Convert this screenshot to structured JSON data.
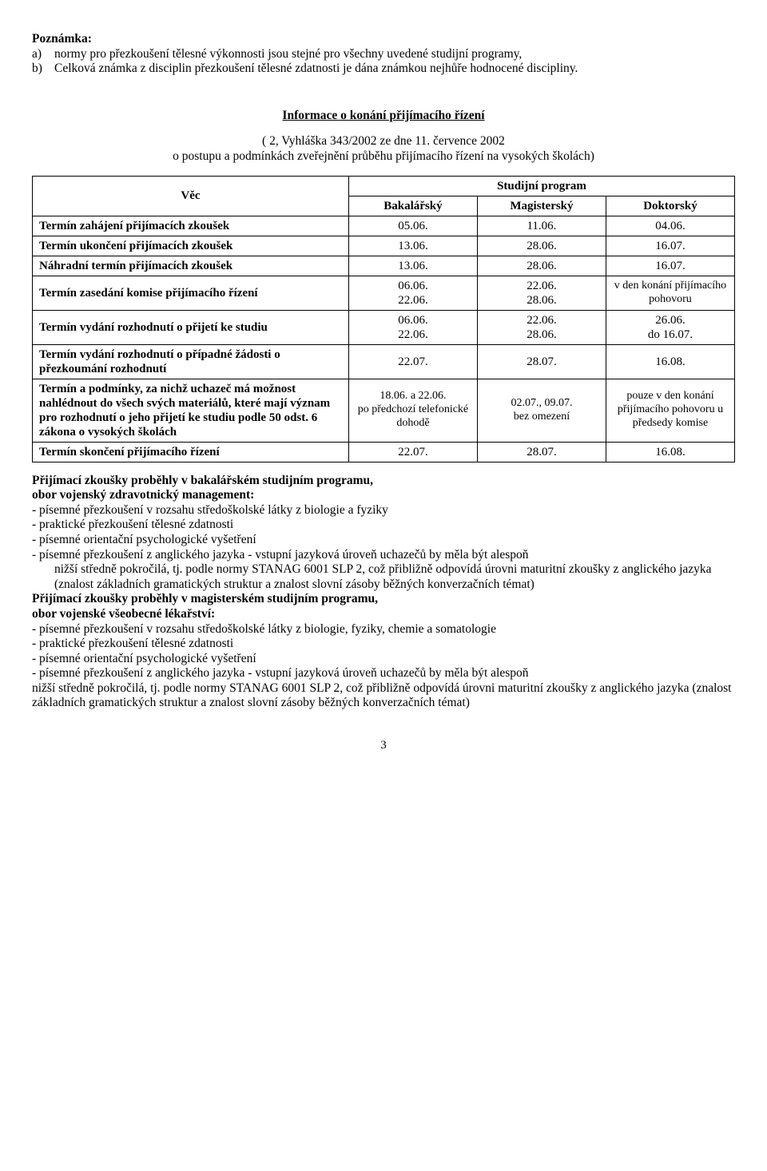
{
  "note": {
    "title": "Poznámka:",
    "a_marker": "a)",
    "a_text": "normy pro přezkoušení tělesné výkonnosti jsou stejné pro všechny uvedené studijní programy,",
    "b_marker": "b)",
    "b_text": "Celková známka z disciplin přezkoušení tělesné zdatnosti je dána známkou nejhůře hodnocené discipliny."
  },
  "info": {
    "heading": "Informace o konání přijímacího řízení",
    "sub1": "( 2, Vyhláška 343/2002 ze dne 11. července 2002",
    "sub2": "o postupu a podmínkách zveřejnění průběhu přijímacího řízení na vysokých školách)"
  },
  "table": {
    "header": {
      "vec": "Věc",
      "program": "Studijní program",
      "bak": "Bakalářský",
      "mag": "Magisterský",
      "dok": "Doktorský"
    },
    "rows": [
      {
        "label": "Termín zahájení přijímacích zkoušek",
        "bak": "05.06.",
        "mag": "11.06.",
        "dok": "04.06."
      },
      {
        "label": "Termín ukončení přijímacích zkoušek",
        "bak": "13.06.",
        "mag": "28.06.",
        "dok": "16.07."
      },
      {
        "label": "Náhradní termín přijímacích zkoušek",
        "bak": "13.06.",
        "mag": "28.06.",
        "dok": "16.07."
      },
      {
        "label": "Termín zasedání komise přijímacího řízení",
        "bak": "06.06.\n22.06.",
        "mag": "22.06.\n28.06.",
        "dok": "v den konání přijímacího pohovoru",
        "dok_small": true
      },
      {
        "label": "Termín vydání rozhodnutí o přijetí ke studiu",
        "bak": "06.06.\n22.06.",
        "mag": "22.06.\n28.06.",
        "dok": "26.06.\ndo 16.07."
      },
      {
        "label": "Termín vydání rozhodnutí o případné žádosti o přezkoumání rozhodnutí",
        "bak": "22.07.",
        "mag": "28.07.",
        "dok": "16.08."
      },
      {
        "label": "Termín a podmínky, za nichž uchazeč má možnost nahlédnout do všech svých materiálů, které mají význam pro rozhodnutí o jeho přijetí ke studiu podle 50 odst. 6 zákona o vysokých školách",
        "bak": "18.06. a 22.06.\npo předchozí telefonické dohodě",
        "mag": "02.07., 09.07.\nbez omezení",
        "dok": "pouze v den konání přijímacího pohovoru u předsedy komise",
        "bak_small": true,
        "mag_small": true,
        "dok_small": true
      },
      {
        "label": "Termín skončení přijímacího řízení",
        "bak": "22.07.",
        "mag": "28.07.",
        "dok": "16.08."
      }
    ]
  },
  "bc": {
    "h1": "Přijímací zkoušky proběhly v bakalářském studijním programu,",
    "h2": "obor vojenský zdravotnický management:",
    "l1": "- písemné přezkoušení v rozsahu středoškolské látky z biologie a fyziky",
    "l2": "- praktické přezkoušení tělesné zdatnosti",
    "l3": "- písemné orientační psychologické vyšetření",
    "l4": "- písemné přezkoušení z anglického jazyka - vstupní jazyková úroveň uchazečů by měla být alespoň",
    "l5": "nižší středně pokročilá, tj. podle normy STANAG 6001 SLP 2, což přibližně odpovídá úrovni maturitní zkoušky z anglického jazyka (znalost základních gramatických struktur a znalost slovní zásoby běžných konverzačních témat)"
  },
  "mgr": {
    "h1": "Přijímací zkoušky proběhly v magisterském studijním programu,",
    "h2": "obor vojenské všeobecné lékařství:",
    "l1": "- písemné přezkoušení v rozsahu středoškolské látky z biologie, fyziky, chemie a somatologie",
    "l2": "- praktické přezkoušení tělesné zdatnosti",
    "l3": "- písemné orientační psychologické vyšetření",
    "l4": "- písemné přezkoušení z anglického jazyka - vstupní jazyková úroveň uchazečů by měla být alespoň",
    "l5": "nižší středně pokročilá, tj. podle normy STANAG 6001 SLP 2, což přibližně odpovídá úrovni maturitní zkoušky z anglického jazyka (znalost základních gramatických struktur a znalost slovní zásoby běžných konverzačních témat)"
  },
  "page_number": "3"
}
